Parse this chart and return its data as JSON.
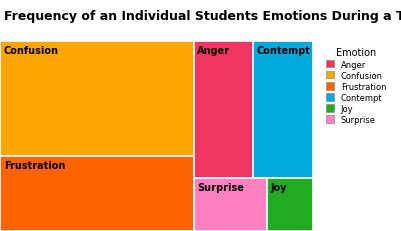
{
  "title": "Frequency of an Individual Students Emotions During a Task",
  "colors": {
    "Anger": "#F03560",
    "Confusion": "#FFA500",
    "Frustration": "#FF6200",
    "Contempt": "#00AADD",
    "Joy": "#22AA22",
    "Surprise": "#FF80C0"
  },
  "legend_order": [
    "Anger",
    "Confusion",
    "Frustration",
    "Contempt",
    "Joy",
    "Surprise"
  ],
  "rects_norm": {
    "Confusion": [
      0.0,
      0.393,
      0.619,
      0.607
    ],
    "Frustration": [
      0.0,
      0.0,
      0.619,
      0.393
    ],
    "Anger": [
      0.619,
      0.276,
      0.19,
      0.724
    ],
    "Contempt": [
      0.809,
      0.276,
      0.191,
      0.724
    ],
    "Surprise": [
      0.619,
      0.0,
      0.235,
      0.276
    ],
    "Joy": [
      0.854,
      0.0,
      0.146,
      0.276
    ]
  },
  "label_fontsize": 7,
  "title_fontsize": 9,
  "background_color": "#ffffff",
  "legend_title": "Emotion"
}
